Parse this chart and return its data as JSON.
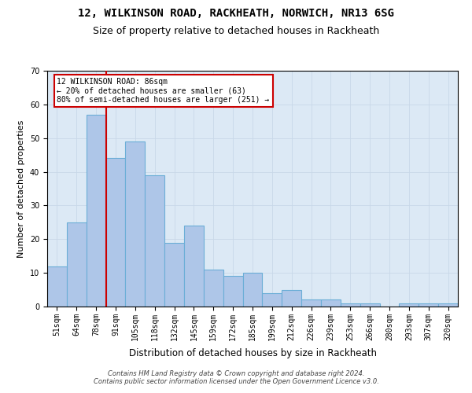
{
  "title1": "12, WILKINSON ROAD, RACKHEATH, NORWICH, NR13 6SG",
  "title2": "Size of property relative to detached houses in Rackheath",
  "xlabel": "Distribution of detached houses by size in Rackheath",
  "ylabel": "Number of detached properties",
  "categories": [
    "51sqm",
    "64sqm",
    "78sqm",
    "91sqm",
    "105sqm",
    "118sqm",
    "132sqm",
    "145sqm",
    "159sqm",
    "172sqm",
    "185sqm",
    "199sqm",
    "212sqm",
    "226sqm",
    "239sqm",
    "253sqm",
    "266sqm",
    "280sqm",
    "293sqm",
    "307sqm",
    "320sqm"
  ],
  "values": [
    12,
    25,
    57,
    44,
    49,
    39,
    19,
    24,
    11,
    9,
    10,
    4,
    5,
    2,
    2,
    1,
    1,
    0,
    1,
    1,
    1
  ],
  "bar_color": "#aec6e8",
  "bar_edge_color": "#6baed6",
  "vline_x_index": 2,
  "vline_color": "#cc0000",
  "annotation_text": "12 WILKINSON ROAD: 86sqm\n← 20% of detached houses are smaller (63)\n80% of semi-detached houses are larger (251) →",
  "annotation_box_color": "#ffffff",
  "annotation_box_edge_color": "#cc0000",
  "ylim": [
    0,
    70
  ],
  "yticks": [
    0,
    10,
    20,
    30,
    40,
    50,
    60,
    70
  ],
  "grid_color": "#c8d8e8",
  "background_color": "#dce9f5",
  "footer": "Contains HM Land Registry data © Crown copyright and database right 2024.\nContains public sector information licensed under the Open Government Licence v3.0.",
  "title1_fontsize": 10,
  "title2_fontsize": 9,
  "xlabel_fontsize": 8.5,
  "ylabel_fontsize": 8,
  "tick_fontsize": 7,
  "footer_fontsize": 6,
  "ann_fontsize": 7
}
